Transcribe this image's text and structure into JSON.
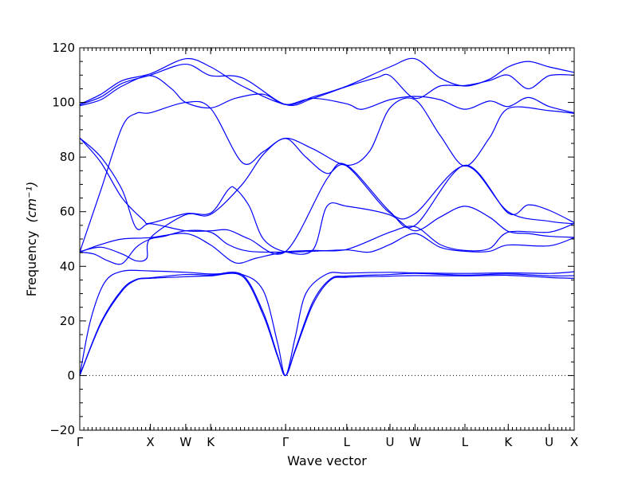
{
  "chart_data": {
    "type": "line",
    "title": "",
    "xlabel": "Wave vector",
    "ylabel": "Frequency",
    "ylabel_unit": "(cm⁻¹)",
    "ylim": [
      -20,
      120
    ],
    "yticks": [
      -20,
      0,
      20,
      40,
      60,
      80,
      100,
      120
    ],
    "x_range": [
      0,
      7.0
    ],
    "grid": false,
    "zero_line": {
      "y": 0,
      "style": "dotted"
    },
    "high_symmetry_points": [
      {
        "label": "Γ",
        "x": 0.0
      },
      {
        "label": "X",
        "x": 1.0
      },
      {
        "label": "W",
        "x": 1.5
      },
      {
        "label": "K",
        "x": 1.853
      },
      {
        "label": "Γ",
        "x": 2.914
      },
      {
        "label": "L",
        "x": 3.78
      },
      {
        "label": "U",
        "x": 4.392
      },
      {
        "label": "W",
        "x": 4.746
      },
      {
        "label": "L",
        "x": 5.453
      },
      {
        "label": "K",
        "x": 6.066
      },
      {
        "label": "U",
        "x": 6.646
      },
      {
        "label": "X",
        "x": 7.0
      }
    ],
    "series": [
      {
        "points": [
          [
            0,
            0
          ],
          [
            0.3,
            19
          ],
          [
            0.6,
            31
          ],
          [
            0.8,
            35
          ],
          [
            1.0,
            35.6
          ],
          [
            1.5,
            36.2
          ],
          [
            1.853,
            36.5
          ],
          [
            2.3,
            36.4
          ],
          [
            2.6,
            22
          ],
          [
            2.8,
            7
          ],
          [
            2.914,
            0
          ],
          [
            3.05,
            9
          ],
          [
            3.3,
            26
          ],
          [
            3.55,
            35
          ],
          [
            3.78,
            36
          ],
          [
            4.392,
            36.4
          ],
          [
            4.746,
            36.6
          ],
          [
            5.453,
            36.5
          ],
          [
            6.066,
            36.7
          ],
          [
            6.646,
            35.9
          ],
          [
            7.0,
            35.6
          ]
        ]
      },
      {
        "points": [
          [
            0,
            0
          ],
          [
            0.3,
            19.5
          ],
          [
            0.6,
            31.5
          ],
          [
            0.8,
            35.2
          ],
          [
            1.0,
            35.8
          ],
          [
            1.5,
            37
          ],
          [
            1.853,
            36.8
          ],
          [
            2.3,
            36.9
          ],
          [
            2.6,
            23
          ],
          [
            2.8,
            7.5
          ],
          [
            2.914,
            0
          ],
          [
            3.05,
            9.5
          ],
          [
            3.3,
            27
          ],
          [
            3.55,
            35.4
          ],
          [
            3.78,
            36.4
          ],
          [
            4.392,
            37
          ],
          [
            4.746,
            37.4
          ],
          [
            5.453,
            36.8
          ],
          [
            6.066,
            37.2
          ],
          [
            6.646,
            36.5
          ],
          [
            7.0,
            36.6
          ]
        ]
      },
      {
        "points": [
          [
            0,
            0
          ],
          [
            0.15,
            20
          ],
          [
            0.35,
            34
          ],
          [
            0.6,
            38.2
          ],
          [
            1.0,
            38.3
          ],
          [
            1.5,
            37.8
          ],
          [
            1.853,
            37.2
          ],
          [
            2.3,
            37
          ],
          [
            2.6,
            31
          ],
          [
            2.8,
            12
          ],
          [
            2.914,
            0
          ],
          [
            3.05,
            14
          ],
          [
            3.2,
            30
          ],
          [
            3.5,
            37.2
          ],
          [
            3.78,
            37.5
          ],
          [
            4.392,
            37.8
          ],
          [
            4.746,
            37.6
          ],
          [
            5.453,
            37.4
          ],
          [
            6.066,
            37.6
          ],
          [
            6.646,
            37.4
          ],
          [
            7.0,
            38
          ]
        ]
      },
      {
        "points": [
          [
            0,
            45.2
          ],
          [
            0.2,
            44.5
          ],
          [
            0.4,
            42
          ],
          [
            0.6,
            41
          ],
          [
            0.8,
            47
          ],
          [
            1.0,
            50
          ],
          [
            1.2,
            51
          ],
          [
            1.5,
            53
          ],
          [
            1.853,
            52.5
          ],
          [
            2.1,
            48
          ],
          [
            2.4,
            45.5
          ],
          [
            2.914,
            45.2
          ],
          [
            3.3,
            45.5
          ],
          [
            3.78,
            46
          ],
          [
            4.1,
            45.2
          ],
          [
            4.392,
            48
          ],
          [
            4.746,
            52
          ],
          [
            5.1,
            47
          ],
          [
            5.453,
            45.5
          ],
          [
            5.8,
            45.5
          ],
          [
            6.066,
            47.8
          ],
          [
            6.646,
            47.5
          ],
          [
            7.0,
            50.5
          ]
        ]
      },
      {
        "points": [
          [
            0,
            45.2
          ],
          [
            0.3,
            48
          ],
          [
            0.6,
            50
          ],
          [
            1.0,
            50.5
          ],
          [
            1.5,
            52
          ],
          [
            1.853,
            47.8
          ],
          [
            2.2,
            41.3
          ],
          [
            2.5,
            43
          ],
          [
            2.914,
            45.3
          ],
          [
            3.3,
            45.8
          ],
          [
            3.78,
            46.2
          ],
          [
            4.392,
            52.5
          ],
          [
            4.746,
            54.5
          ],
          [
            5.1,
            48
          ],
          [
            5.453,
            45.8
          ],
          [
            5.8,
            46.5
          ],
          [
            6.066,
            52.5
          ],
          [
            6.646,
            52.5
          ],
          [
            7.0,
            55.7
          ]
        ]
      },
      {
        "points": [
          [
            0,
            45.4
          ],
          [
            0.3,
            47
          ],
          [
            0.6,
            44.5
          ],
          [
            0.8,
            42
          ],
          [
            0.95,
            43
          ],
          [
            1.0,
            50.4
          ],
          [
            1.5,
            58.9
          ],
          [
            1.853,
            59
          ],
          [
            2.3,
            70
          ],
          [
            2.6,
            81
          ],
          [
            2.914,
            86.8
          ],
          [
            3.2,
            80
          ],
          [
            3.5,
            74
          ],
          [
            3.78,
            76.7
          ],
          [
            4.392,
            59.5
          ],
          [
            4.746,
            59.3
          ],
          [
            5.453,
            76.8
          ],
          [
            6.066,
            60
          ],
          [
            6.646,
            56.5
          ],
          [
            7.0,
            55.6
          ]
        ]
      },
      {
        "points": [
          [
            0,
            87
          ],
          [
            0.3,
            78
          ],
          [
            0.6,
            65
          ],
          [
            0.9,
            57
          ],
          [
            1.0,
            55.8
          ],
          [
            1.5,
            59.3
          ],
          [
            1.853,
            59.5
          ],
          [
            2.1,
            68
          ],
          [
            2.2,
            68.5
          ],
          [
            2.4,
            62
          ],
          [
            2.6,
            50
          ],
          [
            2.914,
            45.3
          ],
          [
            3.3,
            46
          ],
          [
            3.5,
            62
          ],
          [
            3.78,
            62
          ],
          [
            4.392,
            58.8
          ],
          [
            4.746,
            53
          ],
          [
            5.1,
            58
          ],
          [
            5.453,
            62
          ],
          [
            5.8,
            58
          ],
          [
            6.066,
            52.8
          ],
          [
            6.35,
            52
          ],
          [
            6.646,
            51
          ],
          [
            7.0,
            50.6
          ]
        ]
      },
      {
        "points": [
          [
            0,
            87
          ],
          [
            0.3,
            80
          ],
          [
            0.6,
            68
          ],
          [
            0.8,
            54
          ],
          [
            1.0,
            55.6
          ],
          [
            1.5,
            53
          ],
          [
            1.853,
            53
          ],
          [
            2.1,
            53.3
          ],
          [
            2.4,
            50
          ],
          [
            2.914,
            45.4
          ],
          [
            3.5,
            72
          ],
          [
            3.78,
            77
          ],
          [
            4.392,
            60
          ],
          [
            4.746,
            55
          ],
          [
            5.453,
            77
          ],
          [
            6.066,
            59.5
          ],
          [
            6.35,
            62.5
          ],
          [
            6.646,
            60.5
          ],
          [
            7.0,
            56
          ]
        ]
      },
      {
        "points": [
          [
            0,
            45.2
          ],
          [
            0.3,
            68
          ],
          [
            0.6,
            91
          ],
          [
            0.8,
            96
          ],
          [
            1.0,
            96.2
          ],
          [
            1.5,
            100
          ],
          [
            1.853,
            97.8
          ],
          [
            2.3,
            78
          ],
          [
            2.6,
            82
          ],
          [
            2.914,
            86.9
          ],
          [
            3.3,
            83
          ],
          [
            3.78,
            77
          ],
          [
            4.1,
            82
          ],
          [
            4.392,
            98
          ],
          [
            4.746,
            101
          ],
          [
            5.1,
            88
          ],
          [
            5.453,
            76.7
          ],
          [
            5.8,
            87
          ],
          [
            6.066,
            97.8
          ],
          [
            6.646,
            97
          ],
          [
            7.0,
            96
          ]
        ]
      },
      {
        "points": [
          [
            0,
            98.8
          ],
          [
            0.3,
            101
          ],
          [
            0.6,
            106
          ],
          [
            1.0,
            109.8
          ],
          [
            1.3,
            105
          ],
          [
            1.5,
            100
          ],
          [
            1.853,
            98
          ],
          [
            2.2,
            101.5
          ],
          [
            2.6,
            103
          ],
          [
            2.914,
            99.2
          ],
          [
            3.3,
            101.5
          ],
          [
            3.78,
            99.5
          ],
          [
            4.0,
            97.5
          ],
          [
            4.392,
            101
          ],
          [
            4.746,
            102.2
          ],
          [
            5.1,
            101
          ],
          [
            5.453,
            97.5
          ],
          [
            5.8,
            100.5
          ],
          [
            6.066,
            98.5
          ],
          [
            6.35,
            101.8
          ],
          [
            6.646,
            98.5
          ],
          [
            7.0,
            96.2
          ]
        ]
      },
      {
        "points": [
          [
            0,
            99.2
          ],
          [
            0.3,
            102
          ],
          [
            0.6,
            107
          ],
          [
            1.0,
            110
          ],
          [
            1.5,
            114
          ],
          [
            1.853,
            109.8
          ],
          [
            2.3,
            109
          ],
          [
            2.914,
            99.2
          ],
          [
            3.3,
            101.5
          ],
          [
            3.78,
            105.8
          ],
          [
            4.2,
            109
          ],
          [
            4.392,
            109.8
          ],
          [
            4.746,
            101.5
          ],
          [
            5.1,
            106
          ],
          [
            5.453,
            106.2
          ],
          [
            5.8,
            108
          ],
          [
            6.066,
            110
          ],
          [
            6.35,
            105
          ],
          [
            6.646,
            109.8
          ],
          [
            7.0,
            110
          ]
        ]
      },
      {
        "points": [
          [
            0,
            99.3
          ],
          [
            0.3,
            103
          ],
          [
            0.6,
            108
          ],
          [
            1.0,
            110.5
          ],
          [
            1.5,
            116
          ],
          [
            1.853,
            113
          ],
          [
            2.3,
            106
          ],
          [
            2.914,
            99.3
          ],
          [
            3.3,
            102
          ],
          [
            3.78,
            106
          ],
          [
            4.392,
            113
          ],
          [
            4.746,
            116
          ],
          [
            5.1,
            109
          ],
          [
            5.453,
            106
          ],
          [
            5.8,
            108.5
          ],
          [
            6.066,
            113
          ],
          [
            6.35,
            115
          ],
          [
            6.646,
            113
          ],
          [
            7.0,
            111
          ]
        ]
      }
    ]
  }
}
